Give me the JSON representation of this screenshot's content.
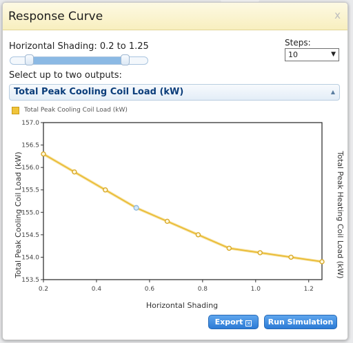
{
  "dialog": {
    "title": "Response Curve",
    "close_glyph": "x"
  },
  "shading": {
    "label": "Horizontal Shading:",
    "range_text": "0.2 to 1.25",
    "slider_min": 0,
    "slider_max": 1.5,
    "range_low": 0.2,
    "range_high": 1.25
  },
  "steps": {
    "label": "Steps:",
    "value": "10"
  },
  "outputs": {
    "label": "Select up to two outputs:",
    "selected": "Total Peak Cooling Coil Load (kW)"
  },
  "legend": {
    "label": "Total Peak Cooling Coil Load (kW)"
  },
  "chart_data": {
    "type": "line",
    "xlabel": "Horizontal Shading",
    "ylabel": "Total Peak Cooling Coil Load (kW)",
    "y2label": "Total Peak Heating Coil Load (kW)",
    "xlim": [
      0.2,
      1.25
    ],
    "ylim": [
      153.5,
      157.0
    ],
    "x_ticks": [
      "0.2",
      "0.4",
      "0.6",
      "0.8",
      "1.0",
      "1.2"
    ],
    "y_ticks": [
      "153.5",
      "154.0",
      "154.5",
      "155.0",
      "155.5",
      "156.0",
      "156.5",
      "157.0"
    ],
    "grid": false,
    "legend_position": "top-left",
    "line_color": "#e9b92e",
    "marker_color": "#d9a928",
    "highlight_color": "#8fb9dd",
    "highlight_index": 3,
    "series": [
      {
        "name": "Total Peak Cooling Coil Load (kW)",
        "x": [
          0.2,
          0.3167,
          0.4333,
          0.55,
          0.6667,
          0.7833,
          0.9,
          1.0167,
          1.1333,
          1.25
        ],
        "y": [
          156.3,
          155.9,
          155.5,
          155.1,
          154.8,
          154.5,
          154.2,
          154.1,
          154.0,
          153.9
        ]
      }
    ]
  },
  "buttons": {
    "export_label": "Export",
    "run_label": "Run Simulation"
  }
}
